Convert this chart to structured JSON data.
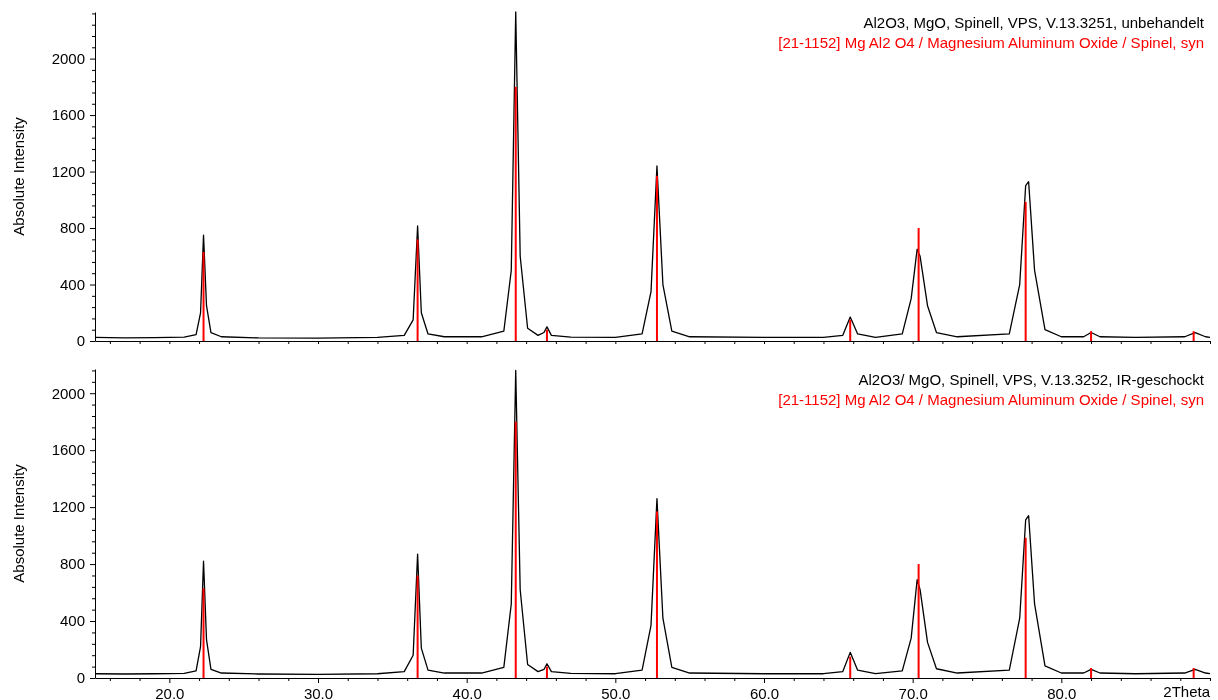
{
  "chart_data": [
    {
      "type": "line",
      "ylabel": "Absolute Intensity",
      "legend": "top right",
      "tick_labels": "y",
      "grid": false,
      "xlim": [
        15,
        90
      ],
      "ylim": [
        0,
        2330
      ],
      "xticks": [
        {
          "value": 16,
          "label": null
        },
        {
          "value": 18,
          "label": null
        },
        {
          "value": 20,
          "label": null
        },
        {
          "value": 22,
          "label": null
        },
        {
          "value": 24,
          "label": null
        },
        {
          "value": 26,
          "label": null
        },
        {
          "value": 28,
          "label": null
        },
        {
          "value": 30,
          "label": null
        },
        {
          "value": 32,
          "label": null
        },
        {
          "value": 34,
          "label": null
        },
        {
          "value": 36,
          "label": null
        },
        {
          "value": 38,
          "label": null
        },
        {
          "value": 40,
          "label": null
        },
        {
          "value": 42,
          "label": null
        },
        {
          "value": 44,
          "label": null
        },
        {
          "value": 46,
          "label": null
        },
        {
          "value": 48,
          "label": null
        },
        {
          "value": 50,
          "label": null
        },
        {
          "value": 52,
          "label": null
        },
        {
          "value": 54,
          "label": null
        },
        {
          "value": 56,
          "label": null
        },
        {
          "value": 58,
          "label": null
        },
        {
          "value": 60,
          "label": null
        },
        {
          "value": 62,
          "label": null
        },
        {
          "value": 64,
          "label": null
        },
        {
          "value": 66,
          "label": null
        },
        {
          "value": 68,
          "label": null
        },
        {
          "value": 70,
          "label": null
        },
        {
          "value": 72,
          "label": null
        },
        {
          "value": 74,
          "label": null
        },
        {
          "value": 76,
          "label": null
        },
        {
          "value": 78,
          "label": null
        },
        {
          "value": 80,
          "label": null
        },
        {
          "value": 82,
          "label": null
        },
        {
          "value": 84,
          "label": null
        },
        {
          "value": 86,
          "label": null
        },
        {
          "value": 88,
          "label": null
        },
        {
          "value": 90,
          "label": null
        }
      ],
      "yticks": [
        0,
        {
          "value": 80,
          "label": null
        },
        {
          "value": 160,
          "label": null
        },
        {
          "value": 240,
          "label": null
        },
        {
          "value": 320,
          "label": null
        },
        400,
        {
          "value": 480,
          "label": null
        },
        {
          "value": 560,
          "label": null
        },
        {
          "value": 640,
          "label": null
        },
        {
          "value": 720,
          "label": null
        },
        800,
        {
          "value": 880,
          "label": null
        },
        {
          "value": 960,
          "label": null
        },
        {
          "value": 1040,
          "label": null
        },
        {
          "value": 1120,
          "label": null
        },
        1200,
        {
          "value": 1280,
          "label": null
        },
        {
          "value": 1360,
          "label": null
        },
        {
          "value": 1440,
          "label": null
        },
        {
          "value": 1520,
          "label": null
        },
        1600,
        {
          "value": 1680,
          "label": null
        },
        {
          "value": 1760,
          "label": null
        },
        {
          "value": 1840,
          "label": null
        },
        {
          "value": 1920,
          "label": null
        },
        2000,
        {
          "value": 2080,
          "label": null
        },
        {
          "value": 2160,
          "label": null
        },
        {
          "value": 2240,
          "label": null
        },
        {
          "value": 2320,
          "label": null
        }
      ],
      "series": [
        {
          "name": "Al2O3, MgO, Spinell, VPS, V.13.3251, unbehandelt",
          "color": "#000000",
          "x": [
            15,
            17,
            19,
            21,
            21.8,
            22.1,
            22.3,
            22.5,
            22.8,
            23.5,
            26,
            30,
            34,
            35.8,
            36.4,
            36.7,
            36.95,
            37.4,
            38.5,
            41,
            42.5,
            43.0,
            43.3,
            43.6,
            44.1,
            44.8,
            45.2,
            45.4,
            45.7,
            47,
            50,
            51.8,
            52.4,
            52.8,
            53.2,
            53.8,
            55,
            60,
            64,
            65.3,
            65.8,
            66.3,
            67.5,
            69.3,
            69.9,
            70.3,
            70.5,
            71.0,
            71.6,
            73,
            76.5,
            77.2,
            77.6,
            77.8,
            78.2,
            78.9,
            80,
            81.5,
            82.0,
            82.6,
            85,
            88.3,
            89.0,
            89.7,
            90
          ],
          "values": [
            25,
            22,
            24,
            28,
            45,
            200,
            750,
            250,
            60,
            30,
            22,
            20,
            25,
            40,
            150,
            815,
            200,
            50,
            30,
            30,
            70,
            500,
            2330,
            600,
            90,
            40,
            60,
            100,
            40,
            28,
            25,
            50,
            350,
            1240,
            400,
            70,
            30,
            25,
            25,
            40,
            170,
            50,
            25,
            50,
            300,
            650,
            600,
            250,
            60,
            30,
            50,
            400,
            1100,
            1128,
            500,
            80,
            30,
            30,
            60,
            30,
            25,
            30,
            60,
            30,
            25
          ]
        },
        {
          "name": "[21-1152] Mg Al2 O4 / Magnesium Aluminum Oxide / Spinel, syn",
          "color": "#ff0000",
          "type": "bar",
          "x": [
            22.3,
            36.7,
            43.3,
            45.4,
            52.8,
            65.8,
            70.4,
            77.6,
            82.0,
            88.9
          ],
          "values": [
            630,
            720,
            1800,
            80,
            1170,
            150,
            800,
            985,
            70,
            70
          ]
        }
      ]
    },
    {
      "type": "line",
      "ylabel": "Absolute Intensity",
      "xlabel": "2Theta",
      "legend": "top right",
      "grid": false,
      "xlim": [
        15,
        90
      ],
      "ylim": [
        0,
        2170
      ],
      "xticks": [
        {
          "value": 16,
          "label": null
        },
        {
          "value": 18,
          "label": null
        },
        {
          "value": 20,
          "label": "20.0"
        },
        {
          "value": 22,
          "label": null
        },
        {
          "value": 24,
          "label": null
        },
        {
          "value": 26,
          "label": null
        },
        {
          "value": 28,
          "label": null
        },
        {
          "value": 30,
          "label": "30.0"
        },
        {
          "value": 32,
          "label": null
        },
        {
          "value": 34,
          "label": null
        },
        {
          "value": 36,
          "label": null
        },
        {
          "value": 38,
          "label": null
        },
        {
          "value": 40,
          "label": "40.0"
        },
        {
          "value": 42,
          "label": null
        },
        {
          "value": 44,
          "label": null
        },
        {
          "value": 46,
          "label": null
        },
        {
          "value": 48,
          "label": null
        },
        {
          "value": 50,
          "label": "50.0"
        },
        {
          "value": 52,
          "label": null
        },
        {
          "value": 54,
          "label": null
        },
        {
          "value": 56,
          "label": null
        },
        {
          "value": 58,
          "label": null
        },
        {
          "value": 60,
          "label": "60.0"
        },
        {
          "value": 62,
          "label": null
        },
        {
          "value": 64,
          "label": null
        },
        {
          "value": 66,
          "label": null
        },
        {
          "value": 68,
          "label": null
        },
        {
          "value": 70,
          "label": "70.0"
        },
        {
          "value": 72,
          "label": null
        },
        {
          "value": 74,
          "label": null
        },
        {
          "value": 76,
          "label": null
        },
        {
          "value": 78,
          "label": null
        },
        {
          "value": 80,
          "label": "80.0"
        },
        {
          "value": 82,
          "label": null
        },
        {
          "value": 84,
          "label": null
        },
        {
          "value": 86,
          "label": null
        },
        {
          "value": 88,
          "label": null
        },
        {
          "value": 90,
          "label": null
        }
      ],
      "yticks": [
        0,
        {
          "value": 80,
          "label": null
        },
        {
          "value": 160,
          "label": null
        },
        {
          "value": 240,
          "label": null
        },
        {
          "value": 320,
          "label": null
        },
        400,
        {
          "value": 480,
          "label": null
        },
        {
          "value": 560,
          "label": null
        },
        {
          "value": 640,
          "label": null
        },
        {
          "value": 720,
          "label": null
        },
        800,
        {
          "value": 880,
          "label": null
        },
        {
          "value": 960,
          "label": null
        },
        {
          "value": 1040,
          "label": null
        },
        {
          "value": 1120,
          "label": null
        },
        1200,
        {
          "value": 1280,
          "label": null
        },
        {
          "value": 1360,
          "label": null
        },
        {
          "value": 1440,
          "label": null
        },
        {
          "value": 1520,
          "label": null
        },
        1600,
        {
          "value": 1680,
          "label": null
        },
        {
          "value": 1760,
          "label": null
        },
        {
          "value": 1840,
          "label": null
        },
        {
          "value": 1920,
          "label": null
        },
        2000,
        {
          "value": 2080,
          "label": null
        },
        {
          "value": 2160,
          "label": null
        }
      ],
      "series": [
        {
          "name": "Al2O3/ MgO, Spinell, VPS, V.13.3252, IR-geschockt",
          "color": "#000000",
          "x": [
            15,
            17,
            19,
            21,
            21.8,
            22.1,
            22.3,
            22.5,
            22.8,
            23.5,
            26,
            30,
            34,
            35.8,
            36.4,
            36.7,
            36.95,
            37.4,
            38.5,
            41,
            42.5,
            43.0,
            43.3,
            43.6,
            44.1,
            44.8,
            45.2,
            45.4,
            45.7,
            47,
            50,
            51.8,
            52.4,
            52.8,
            53.2,
            53.8,
            55,
            60,
            64,
            65.3,
            65.8,
            66.3,
            67.5,
            69.3,
            69.9,
            70.3,
            70.5,
            71.0,
            71.6,
            73,
            76.5,
            77.2,
            77.6,
            77.8,
            78.2,
            78.9,
            80,
            81.5,
            82.0,
            82.6,
            85,
            88.3,
            89.0,
            89.7,
            90
          ],
          "values": [
            30,
            28,
            30,
            32,
            50,
            220,
            820,
            270,
            60,
            35,
            28,
            25,
            30,
            45,
            160,
            870,
            210,
            55,
            35,
            35,
            75,
            520,
            2160,
            620,
            95,
            45,
            60,
            100,
            45,
            32,
            30,
            55,
            370,
            1260,
            420,
            75,
            35,
            30,
            30,
            45,
            180,
            55,
            30,
            50,
            280,
            690,
            620,
            250,
            65,
            35,
            55,
            420,
            1110,
            1140,
            520,
            85,
            35,
            35,
            60,
            35,
            30,
            35,
            60,
            35,
            30
          ]
        },
        {
          "name": "[21-1152] Mg Al2 O4 / Magnesium Aluminum Oxide / Spinel, syn",
          "color": "#ff0000",
          "type": "bar",
          "x": [
            22.3,
            36.7,
            43.3,
            45.4,
            52.8,
            65.8,
            70.4,
            77.6,
            82.0,
            88.9
          ],
          "values": [
            630,
            720,
            1800,
            80,
            1170,
            150,
            800,
            985,
            70,
            70
          ]
        }
      ]
    }
  ]
}
